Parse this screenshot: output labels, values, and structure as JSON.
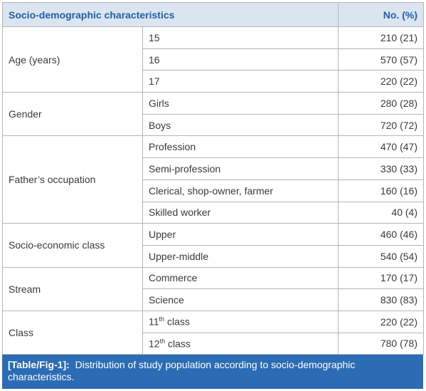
{
  "table": {
    "header": [
      "Socio-demographic characteristics",
      "No. (%)"
    ],
    "groups": [
      {
        "name": "Age (years)",
        "rows": [
          {
            "label": {
              "text": "15"
            },
            "value": "210 (21)"
          },
          {
            "label": {
              "text": "16"
            },
            "value": "570 (57)"
          },
          {
            "label": {
              "text": "17"
            },
            "value": "220 (22)"
          }
        ]
      },
      {
        "name": "Gender",
        "rows": [
          {
            "label": {
              "text": "Girls"
            },
            "value": "280 (28)"
          },
          {
            "label": {
              "text": "Boys"
            },
            "value": "720 (72)"
          }
        ]
      },
      {
        "name": "Father’s occupation",
        "rows": [
          {
            "label": {
              "text": "Profession"
            },
            "value": "470 (47)"
          },
          {
            "label": {
              "text": "Semi-profession"
            },
            "value": "330 (33)"
          },
          {
            "label": {
              "text": "Clerical, shop-owner, farmer"
            },
            "value": "160 (16)"
          },
          {
            "label": {
              "text": "Skilled worker"
            },
            "value": "40 (4)"
          }
        ]
      },
      {
        "name": "Socio-economic class",
        "rows": [
          {
            "label": {
              "text": "Upper"
            },
            "value": "460 (46)"
          },
          {
            "label": {
              "text": "Upper-middle"
            },
            "value": "540 (54)"
          }
        ]
      },
      {
        "name": "Stream",
        "rows": [
          {
            "label": {
              "text": "Commerce"
            },
            "value": "170 (17)"
          },
          {
            "label": {
              "text": "Science"
            },
            "value": "830 (83)"
          }
        ]
      },
      {
        "name": "Class",
        "rows": [
          {
            "label": {
              "text": "11",
              "sup": "th",
              "rest": " class"
            },
            "value": "220 (22)"
          },
          {
            "label": {
              "text": "12",
              "sup": "th",
              "rest": " class"
            },
            "value": "780 (78)"
          }
        ]
      }
    ]
  },
  "caption": {
    "label": "[Table/Fig-1]:",
    "text": "Distribution of study population according to socio-demographic characteristics."
  }
}
